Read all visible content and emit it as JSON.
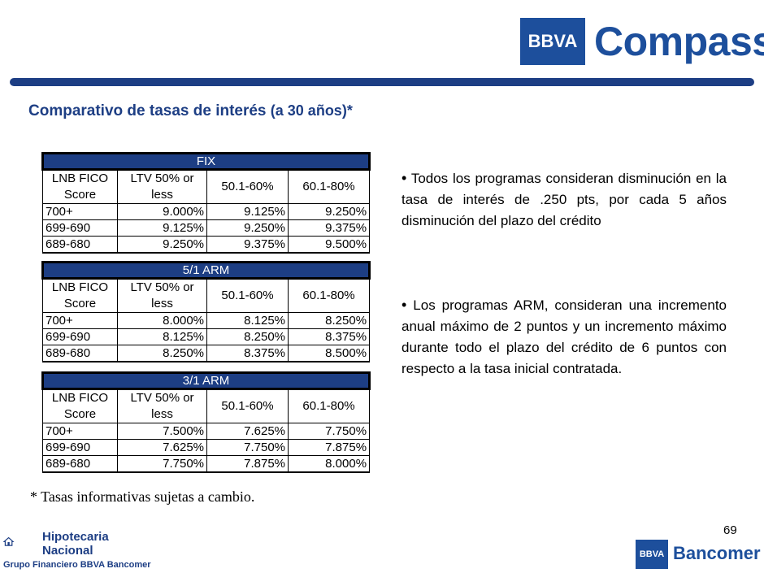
{
  "header": {
    "logo_box": "BBVA",
    "logo_word": "Compass",
    "brand_color": "#1d4f9c"
  },
  "title": {
    "main": "Comparativo de tasas de interés",
    "paren": "(a 30 años)*"
  },
  "tables": [
    {
      "name": "FIX",
      "headers": [
        "LNB FICO Score",
        "LTV 50% or less",
        "50.1-60%",
        "60.1-80%"
      ],
      "rows": [
        [
          "700+",
          "9.000%",
          "9.125%",
          "9.250%"
        ],
        [
          "699-690",
          "9.125%",
          "9.250%",
          "9.375%"
        ],
        [
          "689-680",
          "9.250%",
          "9.375%",
          "9.500%"
        ]
      ]
    },
    {
      "name": "5/1 ARM",
      "headers": [
        "LNB FICO Score",
        "LTV 50% or less",
        "50.1-60%",
        "60.1-80%"
      ],
      "rows": [
        [
          "700+",
          "8.000%",
          "8.125%",
          "8.250%"
        ],
        [
          "699-690",
          "8.125%",
          "8.250%",
          "8.375%"
        ],
        [
          "689-680",
          "8.250%",
          "8.375%",
          "8.500%"
        ]
      ]
    },
    {
      "name": "3/1 ARM",
      "headers": [
        "LNB FICO Score",
        "LTV 50% or less",
        "50.1-60%",
        "60.1-80%"
      ],
      "rows": [
        [
          "700+",
          "7.500%",
          "7.625%",
          "7.750%"
        ],
        [
          "699-690",
          "7.625%",
          "7.750%",
          "7.875%"
        ],
        [
          "689-680",
          "7.750%",
          "7.875%",
          "8.000%"
        ]
      ]
    }
  ],
  "bullets": [
    "Todos los programas consideran disminución en la tasa de interés de .250 pts, por cada 5 años disminución del plazo del crédito",
    "Los programas ARM, consideran una incremento anual máximo de 2 puntos y un incremento máximo durante todo el plazo del crédito de 6 puntos con respecto a la tasa inicial contratada."
  ],
  "footnote": "* Tasas informativas sujetas a cambio.",
  "page_number": "69",
  "footer": {
    "left_title_line1": "Hipotecaria",
    "left_title_line2": "Nacional",
    "left_subtitle": "Grupo Financiero BBVA Bancomer",
    "right_box": "BBVA",
    "right_word": "Bancomer"
  }
}
